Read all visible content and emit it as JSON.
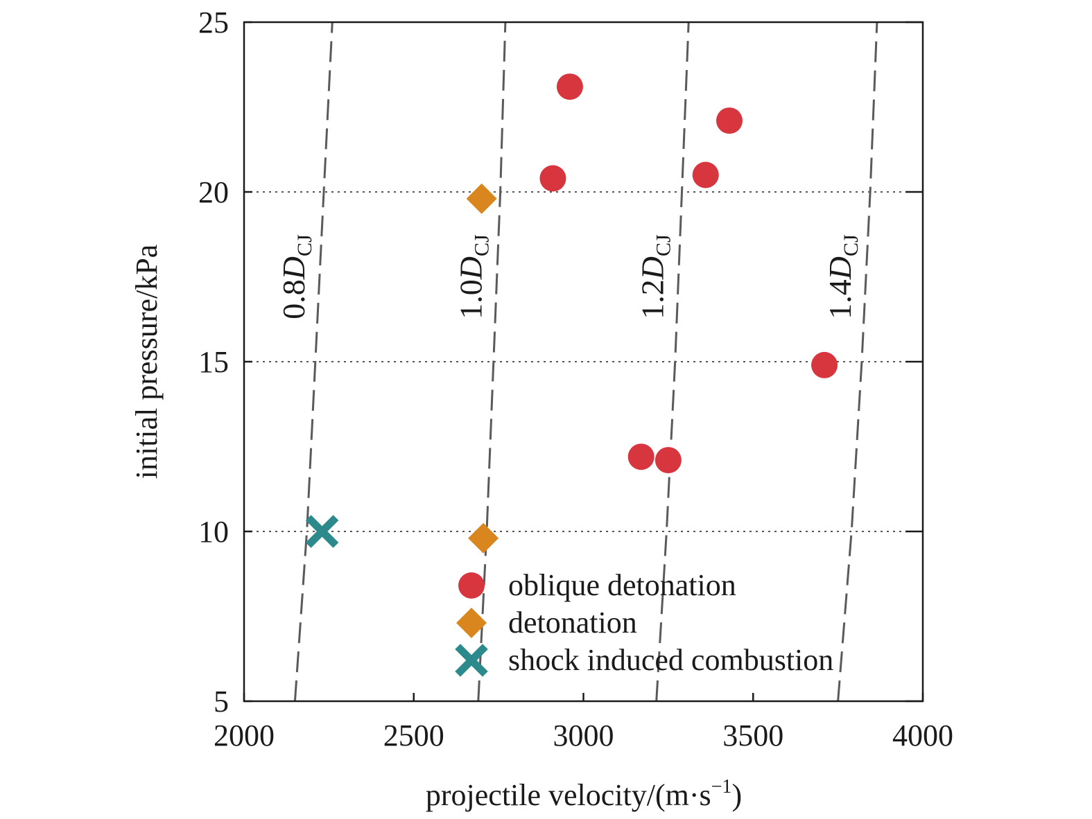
{
  "chart_data": {
    "type": "scatter",
    "xlabel_main": "projectile velocity/(m·s",
    "xlabel_exp": "−1",
    "xlabel_close": ")",
    "ylabel": "initial pressure/kPa",
    "xlim": [
      2000,
      4000
    ],
    "ylim": [
      5,
      25
    ],
    "xticks": [
      2000,
      2500,
      3000,
      3500,
      4000
    ],
    "yticks": [
      5,
      10,
      15,
      20,
      25
    ],
    "grid": "horizontal dotted at y = 10, 15, 20",
    "legend_position": "lower-right",
    "series": [
      {
        "name": "oblique detonation",
        "marker": "circle",
        "color": "#d7363f",
        "points": [
          {
            "x": 2960,
            "y": 23.1
          },
          {
            "x": 2910,
            "y": 20.4
          },
          {
            "x": 3430,
            "y": 22.1
          },
          {
            "x": 3360,
            "y": 20.5
          },
          {
            "x": 3710,
            "y": 14.9
          },
          {
            "x": 3170,
            "y": 12.2
          },
          {
            "x": 3250,
            "y": 12.1
          }
        ]
      },
      {
        "name": "detonation",
        "marker": "diamond",
        "color": "#d9861f",
        "points": [
          {
            "x": 2700,
            "y": 19.8
          },
          {
            "x": 2705,
            "y": 9.8
          }
        ]
      },
      {
        "name": "shock induced combustion",
        "marker": "x",
        "color": "#2d8a8c",
        "points": [
          {
            "x": 2230,
            "y": 10.0
          }
        ]
      }
    ],
    "reference_curves": [
      {
        "prefix": "0.8",
        "symbol": "D",
        "subscript": "CJ",
        "points": [
          {
            "x": 2150,
            "y": 5
          },
          {
            "x": 2185,
            "y": 10
          },
          {
            "x": 2210,
            "y": 15
          },
          {
            "x": 2235,
            "y": 20
          },
          {
            "x": 2260,
            "y": 25
          }
        ]
      },
      {
        "prefix": "1.0",
        "symbol": "D",
        "subscript": "CJ",
        "points": [
          {
            "x": 2690,
            "y": 5
          },
          {
            "x": 2715,
            "y": 10
          },
          {
            "x": 2735,
            "y": 15
          },
          {
            "x": 2755,
            "y": 20
          },
          {
            "x": 2770,
            "y": 25
          }
        ]
      },
      {
        "prefix": "1.2",
        "symbol": "D",
        "subscript": "CJ",
        "points": [
          {
            "x": 3215,
            "y": 5
          },
          {
            "x": 3245,
            "y": 10
          },
          {
            "x": 3270,
            "y": 15
          },
          {
            "x": 3290,
            "y": 20
          },
          {
            "x": 3310,
            "y": 25
          }
        ]
      },
      {
        "prefix": "1.4",
        "symbol": "D",
        "subscript": "CJ",
        "points": [
          {
            "x": 3750,
            "y": 5
          },
          {
            "x": 3790,
            "y": 10
          },
          {
            "x": 3820,
            "y": 15
          },
          {
            "x": 3845,
            "y": 20
          },
          {
            "x": 3865,
            "y": 25
          }
        ]
      }
    ]
  }
}
